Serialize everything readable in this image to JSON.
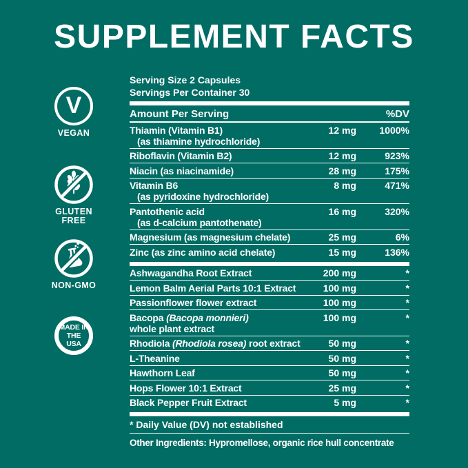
{
  "colors": {
    "background": "#006C64",
    "text": "#FFFFFF"
  },
  "title": "SUPPLEMENT FACTS",
  "badges": [
    {
      "name": "vegan",
      "icon": "v-circle-icon",
      "letter": "V",
      "label": "VEGAN"
    },
    {
      "name": "gluten-free",
      "icon": "wheat-crossed-icon",
      "label": "GLUTEN\nFREE"
    },
    {
      "name": "non-gmo",
      "icon": "flask-crossed-icon",
      "label": "NON-GMO"
    },
    {
      "name": "made-in-usa",
      "icon": "made-in-usa-ring-icon",
      "label": "MADE IN\nTHE USA"
    }
  ],
  "panel": {
    "serving_size": "Serving Size 2 Capsules",
    "servings_per_container": "Servings Per Container 30",
    "header": {
      "amount": "Amount Per Serving",
      "dv": "%DV"
    },
    "sections": [
      {
        "rows": [
          {
            "name": "Thiamin (Vitamin B1)",
            "sub": "(as thiamine hydrochloride)",
            "sub_indent": true,
            "amount": "12 mg",
            "dv": "1000%"
          },
          {
            "name": "Riboflavin (Vitamin B2)",
            "amount": "12 mg",
            "dv": "923%"
          },
          {
            "name": "Niacin (as niacinamide)",
            "amount": "28 mg",
            "dv": "175%"
          },
          {
            "name": "Vitamin B6",
            "sub": "(as pyridoxine hydrochloride)",
            "sub_indent": true,
            "amount": "8 mg",
            "dv": "471%"
          },
          {
            "name": "Pantothenic acid",
            "sub": "(as d-calcium pantothenate)",
            "sub_indent": true,
            "amount": "16 mg",
            "dv": "320%"
          },
          {
            "name": "Magnesium (as magnesium chelate)",
            "amount": "25 mg",
            "dv": "6%"
          },
          {
            "name": "Zinc (as zinc amino acid chelate)",
            "amount": "15 mg",
            "dv": "136%"
          }
        ]
      },
      {
        "rows": [
          {
            "name": "Ashwagandha Root Extract",
            "amount": "200 mg",
            "dv": "*"
          },
          {
            "name": "Lemon Balm Aerial Parts 10:1 Extract",
            "amount": "100 mg",
            "dv": "*"
          },
          {
            "name": "Passionflower flower extract",
            "amount": "100 mg",
            "dv": "*"
          },
          {
            "parts": [
              {
                "text": "Bacopa "
              },
              {
                "text": "(Bacopa monnieri)",
                "italic": true
              }
            ],
            "sub": "whole plant extract",
            "amount": "100 mg",
            "dv": "*"
          },
          {
            "parts": [
              {
                "text": "Rhodiola "
              },
              {
                "text": "(Rhodiola rosea)",
                "italic": true
              },
              {
                "text": " root extract"
              }
            ],
            "amount": "50 mg",
            "dv": "*"
          },
          {
            "name": "L-Theanine",
            "amount": "50 mg",
            "dv": "*"
          },
          {
            "name": "Hawthorn Leaf",
            "amount": "50 mg",
            "dv": "*"
          },
          {
            "name": "Hops Flower 10:1 Extract",
            "amount": "25 mg",
            "dv": "*"
          },
          {
            "name": "Black Pepper Fruit Extract",
            "amount": "5 mg",
            "dv": "*"
          }
        ]
      }
    ],
    "footnote": "* Daily Value (DV) not established",
    "other_ingredients": "Other Ingredients: Hypromellose, organic rice hull concentrate"
  }
}
